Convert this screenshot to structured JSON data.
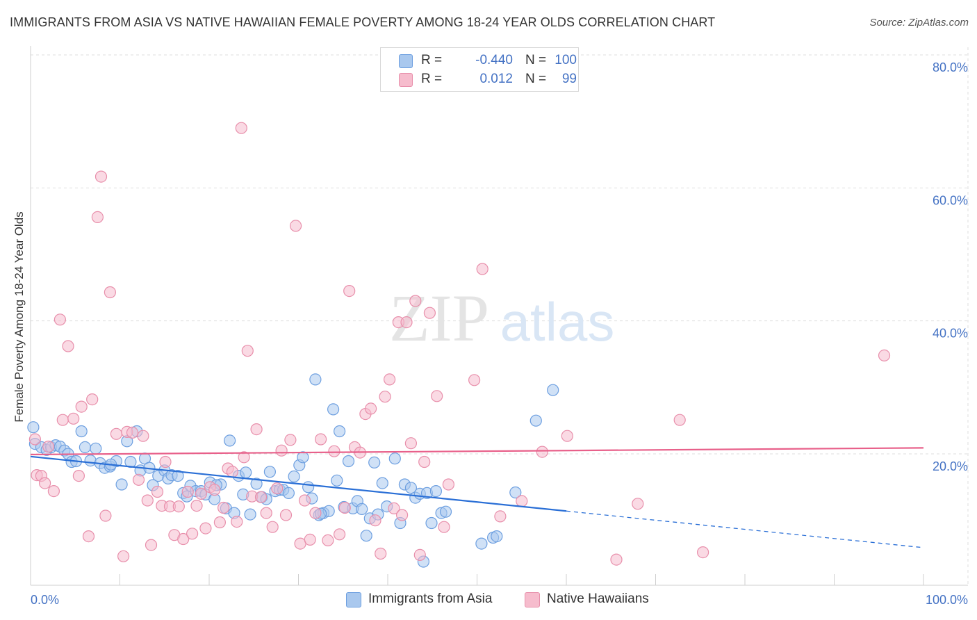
{
  "title": "IMMIGRANTS FROM ASIA VS NATIVE HAWAIIAN FEMALE POVERTY AMONG 18-24 YEAR OLDS CORRELATION CHART",
  "source": "Source: ZipAtlas.com",
  "watermark": {
    "zip": "ZIP",
    "atlas": "atlas"
  },
  "legend_top": {
    "rows": [
      {
        "r_label": "R =",
        "r_value": "-0.440",
        "n_label": "N =",
        "n_value": "100"
      },
      {
        "r_label": "R =",
        "r_value": "0.012",
        "n_label": "N =",
        "n_value": "99"
      }
    ]
  },
  "legend_bottom": {
    "series1": "Immigrants from Asia",
    "series2": "Native Hawaiians"
  },
  "colors": {
    "blue_fill": "#a9c8ee",
    "blue_stroke": "#6d9fe0",
    "blue_line": "#2a6fd6",
    "pink_fill": "#f6bccd",
    "pink_stroke": "#e88fab",
    "pink_line": "#e8608a",
    "axis_text": "#4472c4",
    "grid": "#dedede"
  },
  "chart_data": {
    "type": "scatter",
    "title": "IMMIGRANTS FROM ASIA VS NATIVE HAWAIIAN FEMALE POVERTY AMONG 18-24 YEAR OLDS CORRELATION CHART",
    "xlabel": "",
    "ylabel": "Female Poverty Among 18-24 Year Olds",
    "xlim": [
      0,
      100
    ],
    "ylim": [
      0,
      82
    ],
    "x_ticks": [
      "0.0%",
      "100.0%"
    ],
    "y_ticks": [
      {
        "value": 20,
        "label": "20.0%"
      },
      {
        "value": 40,
        "label": "40.0%"
      },
      {
        "value": 60,
        "label": "60.0%"
      },
      {
        "value": 80,
        "label": "80.0%"
      }
    ],
    "series": [
      {
        "name": "Immigrants from Asia",
        "r": -0.44,
        "n": 100,
        "trend": {
          "x_start": 0,
          "y_start": 19.6,
          "x_end_solid": 60,
          "y_end_solid": 11.4,
          "x_end_dash": 100,
          "y_end_dash": 5.9
        },
        "points": [
          [
            0.3,
            24.0
          ],
          [
            0.5,
            21.5
          ],
          [
            1.2,
            21.0
          ],
          [
            1.8,
            20.6
          ],
          [
            2.3,
            21.0
          ],
          [
            2.8,
            21.3
          ],
          [
            3.3,
            21.1
          ],
          [
            3.8,
            20.5
          ],
          [
            4.2,
            20.0
          ],
          [
            4.6,
            18.8
          ],
          [
            5.1,
            18.9
          ],
          [
            5.7,
            23.4
          ],
          [
            6.1,
            21.0
          ],
          [
            6.7,
            19.0
          ],
          [
            7.3,
            20.8
          ],
          [
            7.8,
            18.6
          ],
          [
            8.3,
            17.9
          ],
          [
            8.9,
            18.1
          ],
          [
            9.6,
            18.9
          ],
          [
            10.2,
            15.4
          ],
          [
            10.8,
            21.9
          ],
          [
            11.2,
            18.8
          ],
          [
            11.9,
            23.4
          ],
          [
            12.3,
            17.5
          ],
          [
            12.8,
            19.3
          ],
          [
            13.3,
            17.9
          ],
          [
            13.7,
            15.3
          ],
          [
            14.3,
            16.7
          ],
          [
            15.0,
            17.5
          ],
          [
            15.4,
            16.3
          ],
          [
            15.8,
            16.8
          ],
          [
            16.5,
            16.7
          ],
          [
            17.1,
            14.1
          ],
          [
            17.5,
            13.6
          ],
          [
            17.9,
            15.2
          ],
          [
            18.5,
            14.4
          ],
          [
            19.1,
            14.4
          ],
          [
            19.6,
            13.9
          ],
          [
            20.1,
            15.7
          ],
          [
            20.6,
            13.2
          ],
          [
            21.3,
            15.4
          ],
          [
            21.9,
            11.8
          ],
          [
            22.3,
            22.0
          ],
          [
            22.8,
            11.1
          ],
          [
            23.3,
            16.7
          ],
          [
            23.8,
            13.9
          ],
          [
            24.1,
            17.2
          ],
          [
            24.6,
            10.9
          ],
          [
            25.3,
            15.5
          ],
          [
            25.9,
            13.5
          ],
          [
            26.4,
            13.2
          ],
          [
            26.8,
            17.3
          ],
          [
            27.4,
            14.4
          ],
          [
            27.9,
            14.6
          ],
          [
            28.3,
            14.6
          ],
          [
            28.9,
            14.1
          ],
          [
            29.5,
            16.6
          ],
          [
            30.1,
            18.3
          ],
          [
            30.5,
            19.5
          ],
          [
            31.1,
            15.0
          ],
          [
            31.5,
            13.3
          ],
          [
            31.9,
            31.2
          ],
          [
            32.3,
            10.8
          ],
          [
            32.8,
            11.1
          ],
          [
            33.4,
            11.4
          ],
          [
            33.9,
            26.7
          ],
          [
            34.3,
            16.0
          ],
          [
            34.6,
            23.4
          ],
          [
            35.1,
            12.0
          ],
          [
            35.6,
            18.9
          ],
          [
            36.1,
            11.8
          ],
          [
            36.6,
            12.9
          ],
          [
            37.1,
            11.7
          ],
          [
            37.6,
            7.7
          ],
          [
            38.0,
            10.3
          ],
          [
            38.5,
            18.7
          ],
          [
            38.9,
            10.9
          ],
          [
            39.4,
            15.6
          ],
          [
            39.9,
            12.1
          ],
          [
            40.8,
            19.3
          ],
          [
            41.4,
            9.6
          ],
          [
            41.9,
            15.4
          ],
          [
            42.6,
            14.9
          ],
          [
            43.1,
            13.4
          ],
          [
            43.6,
            14.0
          ],
          [
            44.0,
            3.8
          ],
          [
            44.4,
            14.1
          ],
          [
            44.9,
            9.6
          ],
          [
            45.4,
            14.4
          ],
          [
            46.0,
            11.1
          ],
          [
            46.5,
            11.3
          ],
          [
            50.5,
            6.5
          ],
          [
            51.8,
            7.4
          ],
          [
            52.2,
            7.6
          ],
          [
            54.3,
            14.2
          ],
          [
            56.6,
            25.0
          ],
          [
            58.5,
            29.6
          ],
          [
            32.5,
            11.0
          ],
          [
            20.8,
            15.3
          ],
          [
            9.0,
            18.4
          ]
        ]
      },
      {
        "name": "Native Hawaiians",
        "r": 0.012,
        "n": 99,
        "trend": {
          "x_start": 0,
          "y_start": 19.9,
          "x_end": 100,
          "y_end": 20.9
        },
        "points": [
          [
            0.5,
            22.2
          ],
          [
            0.7,
            16.8
          ],
          [
            1.2,
            16.7
          ],
          [
            1.6,
            15.6
          ],
          [
            2.0,
            21.1
          ],
          [
            2.6,
            14.4
          ],
          [
            3.3,
            40.2
          ],
          [
            3.6,
            25.1
          ],
          [
            4.2,
            36.2
          ],
          [
            4.8,
            25.3
          ],
          [
            5.4,
            16.7
          ],
          [
            5.7,
            27.1
          ],
          [
            6.5,
            7.6
          ],
          [
            6.9,
            28.2
          ],
          [
            7.5,
            55.6
          ],
          [
            7.9,
            61.7
          ],
          [
            8.4,
            10.7
          ],
          [
            8.9,
            44.3
          ],
          [
            9.6,
            23.0
          ],
          [
            10.4,
            4.6
          ],
          [
            10.8,
            23.3
          ],
          [
            11.4,
            23.2
          ],
          [
            12.1,
            16.1
          ],
          [
            12.6,
            22.7
          ],
          [
            13.1,
            13.0
          ],
          [
            13.5,
            6.3
          ],
          [
            14.2,
            14.3
          ],
          [
            14.7,
            12.2
          ],
          [
            15.1,
            18.8
          ],
          [
            15.6,
            12.1
          ],
          [
            16.1,
            7.8
          ],
          [
            16.6,
            12.1
          ],
          [
            17.1,
            7.2
          ],
          [
            17.6,
            14.3
          ],
          [
            18.1,
            8.0
          ],
          [
            18.6,
            12.2
          ],
          [
            19.1,
            14.0
          ],
          [
            19.6,
            8.8
          ],
          [
            20.1,
            15.0
          ],
          [
            20.6,
            14.6
          ],
          [
            21.2,
            9.7
          ],
          [
            21.6,
            11.9
          ],
          [
            22.1,
            17.8
          ],
          [
            22.6,
            17.3
          ],
          [
            23.1,
            9.8
          ],
          [
            23.6,
            69.0
          ],
          [
            23.9,
            19.5
          ],
          [
            24.3,
            35.5
          ],
          [
            24.8,
            13.6
          ],
          [
            25.3,
            23.7
          ],
          [
            25.8,
            13.5
          ],
          [
            26.4,
            11.1
          ],
          [
            27.1,
            9.0
          ],
          [
            27.6,
            14.8
          ],
          [
            28.1,
            20.5
          ],
          [
            28.6,
            10.8
          ],
          [
            29.1,
            22.1
          ],
          [
            29.7,
            54.3
          ],
          [
            30.2,
            6.5
          ],
          [
            30.7,
            13.0
          ],
          [
            31.3,
            7.1
          ],
          [
            31.9,
            11.1
          ],
          [
            32.5,
            22.2
          ],
          [
            33.3,
            7.0
          ],
          [
            34.0,
            20.4
          ],
          [
            34.6,
            7.9
          ],
          [
            35.2,
            11.9
          ],
          [
            35.7,
            44.5
          ],
          [
            36.3,
            21.0
          ],
          [
            36.9,
            20.2
          ],
          [
            37.5,
            26.0
          ],
          [
            38.1,
            26.8
          ],
          [
            38.6,
            10.0
          ],
          [
            39.2,
            5.0
          ],
          [
            39.7,
            28.6
          ],
          [
            40.2,
            31.2
          ],
          [
            40.7,
            11.8
          ],
          [
            41.2,
            39.8
          ],
          [
            41.6,
            10.8
          ],
          [
            42.1,
            39.8
          ],
          [
            42.6,
            21.6
          ],
          [
            43.1,
            43.0
          ],
          [
            43.6,
            4.8
          ],
          [
            44.1,
            18.8
          ],
          [
            44.7,
            41.2
          ],
          [
            45.5,
            28.7
          ],
          [
            46.3,
            9.0
          ],
          [
            46.8,
            15.4
          ],
          [
            49.7,
            31.1
          ],
          [
            50.6,
            47.8
          ],
          [
            52.6,
            10.6
          ],
          [
            55.0,
            12.9
          ],
          [
            57.3,
            20.3
          ],
          [
            60.1,
            22.7
          ],
          [
            65.6,
            4.1
          ],
          [
            68.0,
            12.5
          ],
          [
            72.7,
            25.1
          ],
          [
            75.3,
            5.2
          ],
          [
            95.6,
            34.8
          ]
        ]
      }
    ]
  }
}
